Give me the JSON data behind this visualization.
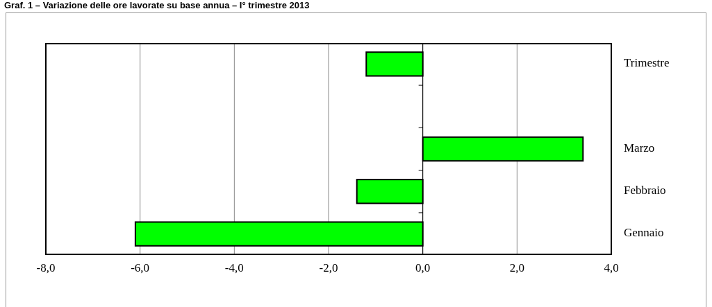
{
  "chart_data": {
    "type": "bar",
    "orientation": "horizontal",
    "title": "Graf. 1 – Variazione delle ore lavorate su base annua – I° trimestre 2013",
    "categories": [
      "Trimestre",
      null,
      "Marzo",
      "Febbraio",
      "Gennaio"
    ],
    "values": [
      -1.2,
      null,
      3.4,
      -1.4,
      -6.1
    ],
    "color": "#00ff00",
    "xlim": [
      -8,
      4
    ],
    "xticks": [
      {
        "value": -8,
        "label": "-8,0"
      },
      {
        "value": -6,
        "label": "-6,0"
      },
      {
        "value": -4,
        "label": "-4,0"
      },
      {
        "value": -2,
        "label": "-2,0"
      },
      {
        "value": 0,
        "label": "0,0"
      },
      {
        "value": 2,
        "label": "2,0"
      },
      {
        "value": 4,
        "label": "4,0"
      }
    ],
    "grid": "x"
  }
}
